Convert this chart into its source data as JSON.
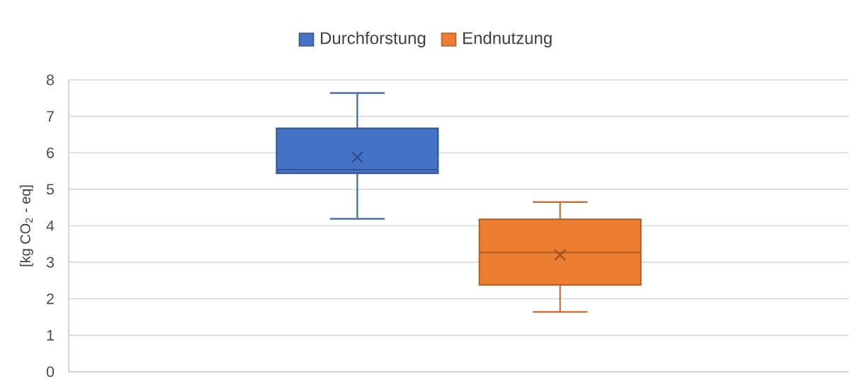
{
  "chart_data": {
    "type": "box",
    "ylabel": "[kg CO$_{2}$ - eq]",
    "categories": [
      null
    ],
    "ylim": [
      0,
      8
    ],
    "yticks": [
      0,
      1,
      2,
      3,
      4,
      5,
      6,
      7,
      8
    ],
    "grid": "y",
    "legend": "top",
    "series": [
      {
        "name": "Durchforstung",
        "color": "#4472c4",
        "boxes": [
          {
            "low": 4.19,
            "q1": 5.44,
            "median": 5.54,
            "q3": 6.67,
            "high": 7.64,
            "mean": 5.88
          }
        ]
      },
      {
        "name": "Endnutzung",
        "color": "#ed7d31",
        "boxes": [
          {
            "low": 1.64,
            "q1": 2.38,
            "median": 3.27,
            "q3": 4.18,
            "high": 4.65,
            "mean": 3.2
          }
        ]
      }
    ]
  }
}
